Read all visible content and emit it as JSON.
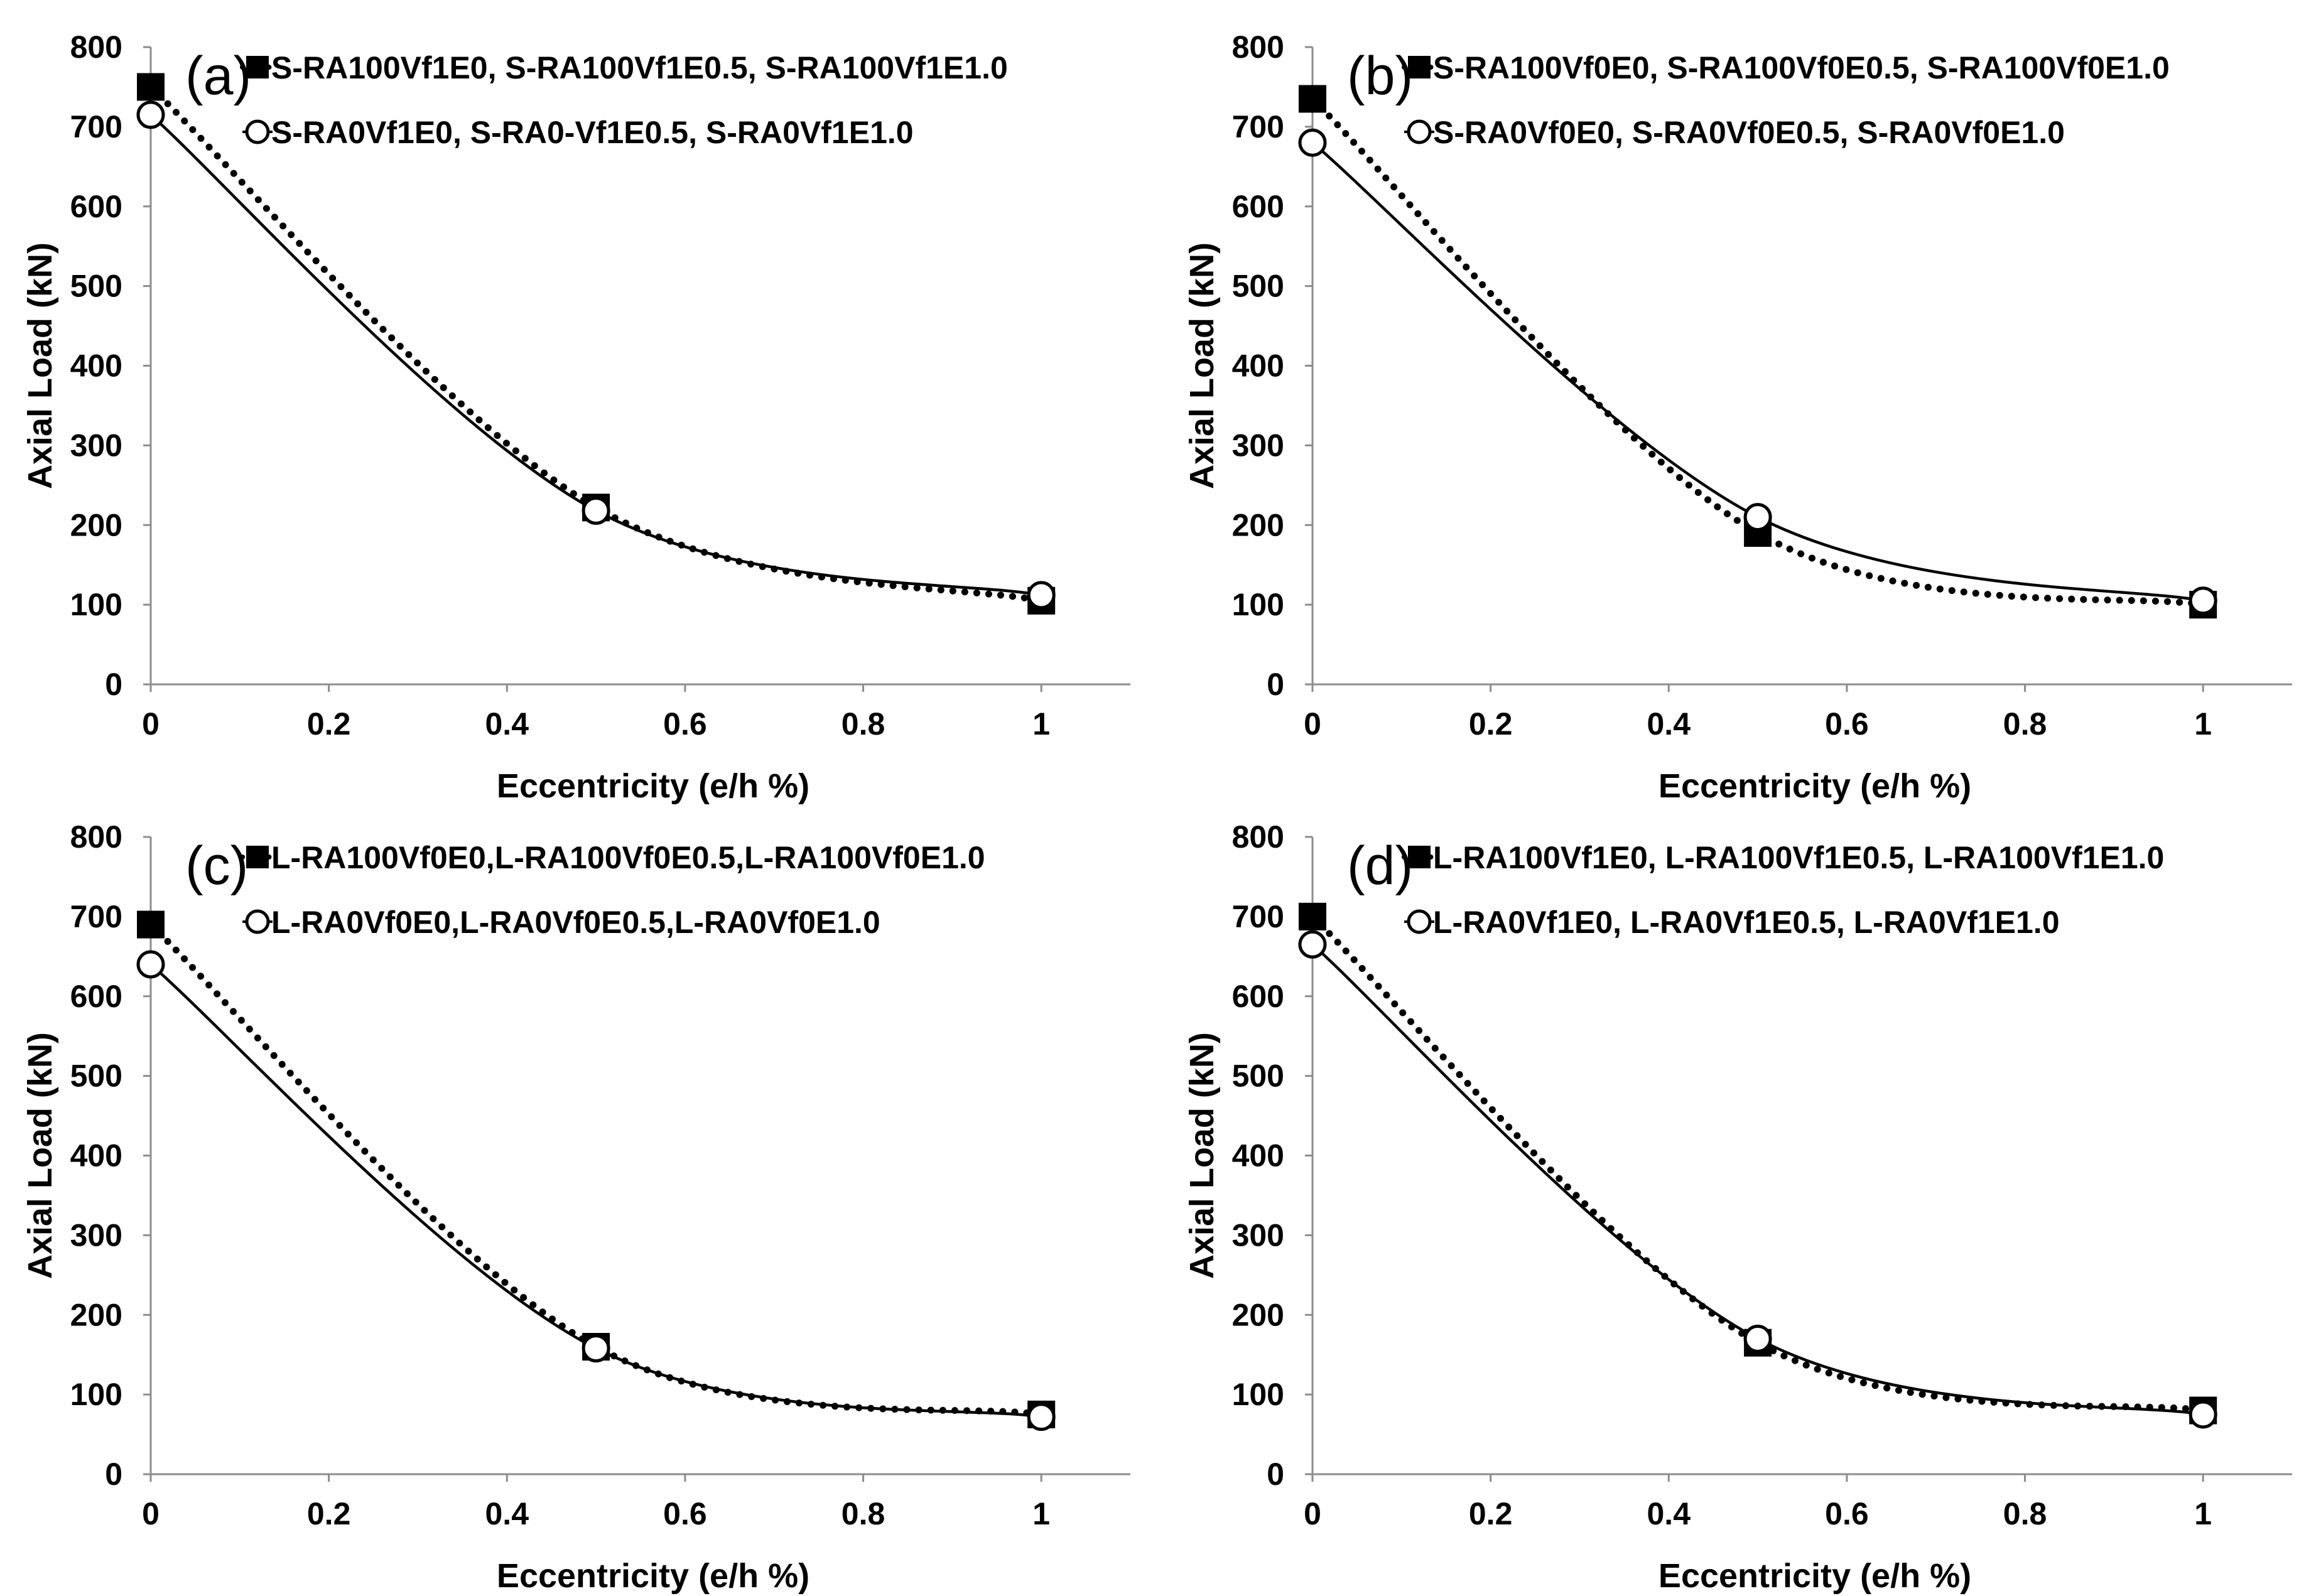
{
  "chart_data": [
    {
      "type": "line",
      "panel_label": "(a)",
      "x": [
        0,
        0.5,
        1
      ],
      "xlabel": "Eccentricity (e/h %)",
      "ylabel": "Axial Load (kN)",
      "xlim": [
        0,
        1.1
      ],
      "ylim": [
        0,
        800
      ],
      "xticks": [
        0,
        0.2,
        0.4,
        0.6,
        0.8,
        1
      ],
      "xtick_labels": [
        "0",
        "0.2",
        "0.4",
        "0.6",
        "0.8",
        "1"
      ],
      "yticks": [
        0,
        100,
        200,
        300,
        400,
        500,
        600,
        700,
        800
      ],
      "ytick_labels": [
        "0",
        "100",
        "200",
        "300",
        "400",
        "500",
        "600",
        "700",
        "800"
      ],
      "series": [
        {
          "name": "S-RA100Vf1E0, S-RA100Vf1E0.5, S-RA100Vf1E1.0",
          "marker": "square",
          "line": "dotted",
          "values": [
            750,
            222,
            105
          ]
        },
        {
          "name": "S-RA0Vf1E0, S-RA0-Vf1E0.5, S-RA0Vf1E1.0",
          "marker": "circle",
          "line": "solid",
          "values": [
            715,
            218,
            112
          ]
        }
      ]
    },
    {
      "type": "line",
      "panel_label": "(b)",
      "x": [
        0,
        0.5,
        1
      ],
      "xlabel": "Eccentricity (e/h %)",
      "ylabel": "Axial Load (kN)",
      "xlim": [
        0,
        1.1
      ],
      "ylim": [
        0,
        800
      ],
      "xticks": [
        0,
        0.2,
        0.4,
        0.6,
        0.8,
        1
      ],
      "xtick_labels": [
        "0",
        "0.2",
        "0.4",
        "0.6",
        "0.8",
        "1"
      ],
      "yticks": [
        0,
        100,
        200,
        300,
        400,
        500,
        600,
        700,
        800
      ],
      "ytick_labels": [
        "0",
        "100",
        "200",
        "300",
        "400",
        "500",
        "600",
        "700",
        "800"
      ],
      "series": [
        {
          "name": "S-RA100Vf0E0, S-RA100Vf0E0.5, S-RA100Vf0E1.0",
          "marker": "square",
          "line": "dotted",
          "values": [
            735,
            190,
            100
          ]
        },
        {
          "name": "S-RA0Vf0E0, S-RA0Vf0E0.5, S-RA0Vf0E1.0",
          "marker": "circle",
          "line": "solid",
          "values": [
            680,
            210,
            105
          ]
        }
      ]
    },
    {
      "type": "line",
      "panel_label": "(c)",
      "x": [
        0,
        0.5,
        1
      ],
      "xlabel": "Eccentricity (e/h %)",
      "ylabel": "Axial Load (kN)",
      "xlim": [
        0,
        1.1
      ],
      "ylim": [
        0,
        800
      ],
      "xticks": [
        0,
        0.2,
        0.4,
        0.6,
        0.8,
        1
      ],
      "xtick_labels": [
        "0",
        "0.2",
        "0.4",
        "0.6",
        "0.8",
        "1"
      ],
      "yticks": [
        0,
        100,
        200,
        300,
        400,
        500,
        600,
        700,
        800
      ],
      "ytick_labels": [
        "0",
        "100",
        "200",
        "300",
        "400",
        "500",
        "600",
        "700",
        "800"
      ],
      "series": [
        {
          "name": "L-RA100Vf0E0,L-RA100Vf0E0.5,L-RA100Vf0E1.0",
          "marker": "square",
          "line": "dotted",
          "values": [
            690,
            160,
            75
          ]
        },
        {
          "name": "L-RA0Vf0E0,L-RA0Vf0E0.5,L-RA0Vf0E1.0",
          "marker": "circle",
          "line": "solid",
          "values": [
            640,
            158,
            72
          ]
        }
      ]
    },
    {
      "type": "line",
      "panel_label": "(d)",
      "x": [
        0,
        0.5,
        1
      ],
      "xlabel": "Eccentricity (e/h %)",
      "ylabel": "Axial Load (kN)",
      "xlim": [
        0,
        1.1
      ],
      "ylim": [
        0,
        800
      ],
      "xticks": [
        0,
        0.2,
        0.4,
        0.6,
        0.8,
        1
      ],
      "xtick_labels": [
        "0",
        "0.2",
        "0.4",
        "0.6",
        "0.8",
        "1"
      ],
      "yticks": [
        0,
        100,
        200,
        300,
        400,
        500,
        600,
        700,
        800
      ],
      "ytick_labels": [
        "0",
        "100",
        "200",
        "300",
        "400",
        "500",
        "600",
        "700",
        "800"
      ],
      "series": [
        {
          "name": "L-RA100Vf1E0, L-RA100Vf1E0.5, L-RA100Vf1E1.0",
          "marker": "square",
          "line": "dotted",
          "values": [
            700,
            165,
            80
          ]
        },
        {
          "name": "L-RA0Vf1E0, L-RA0Vf1E0.5, L-RA0Vf1E1.0",
          "marker": "circle",
          "line": "solid",
          "values": [
            665,
            170,
            75
          ]
        }
      ]
    }
  ]
}
